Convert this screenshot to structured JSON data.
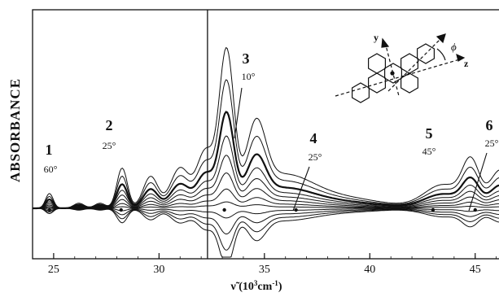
{
  "chart_data": {
    "type": "line",
    "title": "",
    "ylabel": "ABSORBANCE",
    "xlabel_main": "ν̃ (10",
    "xlabel_sup1": "3",
    "xlabel_mid": "cm",
    "xlabel_sup2": "-1",
    "xlabel_end": ")",
    "xlim": [
      24.0,
      46.4
    ],
    "xticks": [
      {
        "value": 25,
        "label": "25"
      },
      {
        "value": 30,
        "label": "30"
      },
      {
        "value": 35,
        "label": "35"
      },
      {
        "value": 40,
        "label": "40"
      },
      {
        "value": 45,
        "label": "45"
      }
    ],
    "panel_break": 32.3,
    "grid": false,
    "num_curves": 12,
    "peaks": [
      {
        "number": "1",
        "angle": "60°",
        "position": 24.8
      },
      {
        "number": "2",
        "angle": "25°",
        "position": 28.2
      },
      {
        "number": "3",
        "angle": "10°",
        "position": 33.1
      },
      {
        "number": "4",
        "angle": "25°",
        "position": 36.5
      },
      {
        "number": "5",
        "angle": "45°",
        "position": 43.0
      },
      {
        "number": "6",
        "angle": "25°",
        "position": 45.0
      }
    ],
    "inset": {
      "axis_y": "y",
      "axis_z": "z",
      "angle_symbol": "ϕ"
    }
  }
}
